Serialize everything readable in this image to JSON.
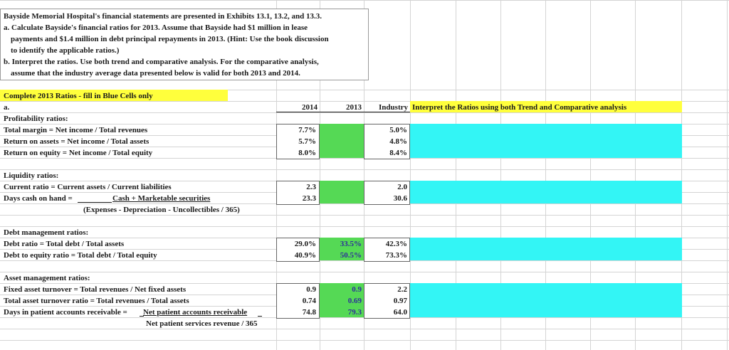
{
  "intro": {
    "line1": "Bayside Memorial Hospital's financial statements are presented in Exhibits 13.1, 13.2, and 13.3.",
    "line2": "a. Calculate Bayside's financial ratios for 2013. Assume that Bayside had $1 million in lease",
    "line3": "payments and $1.4 million in debt principal repayments in 2013. (Hint: Use the book discussion",
    "line4": "to identify the applicable ratios.)",
    "line5": "b. Interpret the ratios. Use both trend and comparative analysis. For the comparative analysis,",
    "line6": "assume that the industry average data presented below is valid for both 2013 and 2014."
  },
  "banner": {
    "text": "Complete 2013 Ratios  - fill in Blue Cells only",
    "color": "#ffff3c"
  },
  "header": {
    "part": "a.",
    "col2014": "2014",
    "col2013": "2013",
    "colIndustry": "Industry",
    "interpret": "Interpret the Ratios using both Trend and Comparative analysis"
  },
  "profitability": {
    "title": "Profitability ratios:",
    "r1_label": "Total margin = Net income / Total revenues",
    "r2_label": "Return on assets = Net income / Total assets",
    "r3_label": "Return on equity = Net income / Total equity",
    "r1_2014": "7.7%",
    "r2_2014": "5.7%",
    "r3_2014": "8.0%",
    "r1_ind": "5.0%",
    "r2_ind": "4.8%",
    "r3_ind": "8.4%"
  },
  "liquidity": {
    "title": "Liquidity ratios:",
    "r1_label": "Current ratio = Current assets / Current liabilities",
    "r2_label": "Days cash on hand =",
    "r2_numerator": "Cash + Marketable securities",
    "r2_denominator": "(Expenses - Depreciation - Uncollectibles / 365)",
    "r1_2014": "2.3",
    "r2_2014": "23.3",
    "r1_ind": "2.0",
    "r2_ind": "30.6"
  },
  "debt": {
    "title": "Debt management ratios:",
    "r1_label": "Debt ratio = Total debt / Total assets",
    "r2_label": "Debt to equity ratio = Total debt / Total equity",
    "r1_2014": "29.0%",
    "r2_2014": "40.9%",
    "r1_2013": "33.5%",
    "r2_2013": "50.5%",
    "r1_ind": "42.3%",
    "r2_ind": "73.3%"
  },
  "asset": {
    "title": "Asset management ratios:",
    "r1_label": "Fixed asset turnover = Total revenues / Net fixed assets",
    "r2_label": "Total asset turnover ratio = Total revenues / Total assets",
    "r3_label": "Days in patient accounts receivable =",
    "r3_numerator": "Net patient accounts receivable",
    "r3_denominator": "Net patient services revenue / 365",
    "r1_2014": "0.9",
    "r2_2014": "0.74",
    "r3_2014": "74.8",
    "r1_2013": "0.9",
    "r2_2013": "0.69",
    "r3_2013": "79.3",
    "r1_ind": "2.2",
    "r2_ind": "0.97",
    "r3_ind": "64.0"
  },
  "colors": {
    "green": "#55d955",
    "cyan": "#33f5f5",
    "yellow": "#ffff3c"
  }
}
